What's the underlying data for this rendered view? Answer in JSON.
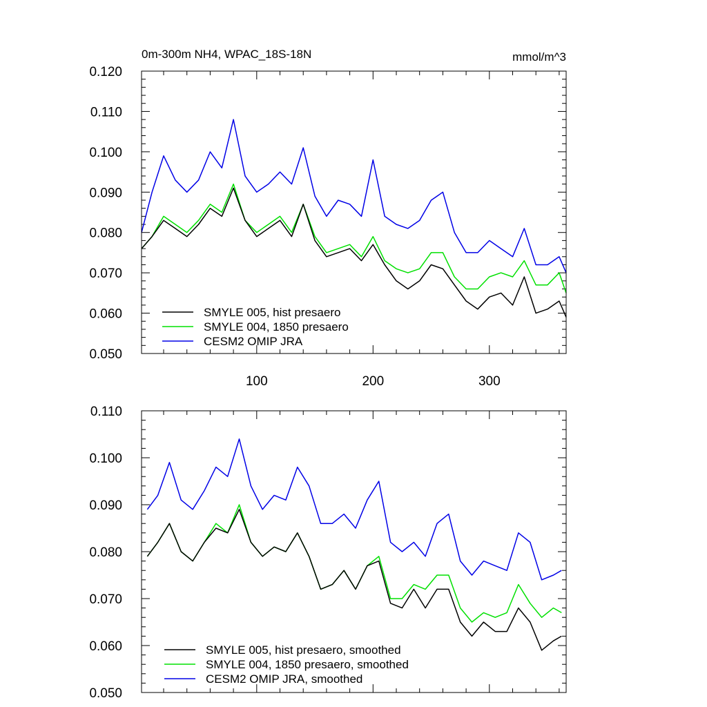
{
  "chart_data": [
    {
      "type": "line",
      "title": "0m-300m NH4, WPAC_18S-18N",
      "units": "mmol/m^3",
      "xlim": [
        1,
        366
      ],
      "ylim": [
        0.05,
        0.12
      ],
      "yticks": [
        "0.050",
        "0.060",
        "0.070",
        "0.080",
        "0.090",
        "0.100",
        "0.110",
        "0.120"
      ],
      "xticks": [
        "100",
        "200",
        "300"
      ],
      "legend_position": "bottom-left",
      "series": [
        {
          "name": "SMYLE 005, hist presaero",
          "color": "#000000",
          "x": [
            1,
            10,
            20,
            30,
            40,
            50,
            60,
            70,
            80,
            90,
            100,
            110,
            120,
            130,
            140,
            150,
            160,
            170,
            180,
            190,
            200,
            210,
            220,
            230,
            240,
            250,
            260,
            270,
            280,
            290,
            300,
            310,
            320,
            330,
            340,
            350,
            360,
            366
          ],
          "y": [
            0.076,
            0.079,
            0.083,
            0.081,
            0.079,
            0.082,
            0.086,
            0.084,
            0.091,
            0.083,
            0.079,
            0.081,
            0.083,
            0.079,
            0.087,
            0.078,
            0.074,
            0.075,
            0.076,
            0.073,
            0.077,
            0.072,
            0.068,
            0.066,
            0.068,
            0.072,
            0.071,
            0.067,
            0.063,
            0.061,
            0.064,
            0.065,
            0.062,
            0.069,
            0.06,
            0.061,
            0.063,
            0.059
          ]
        },
        {
          "name": "SMYLE 004, 1850 presaero",
          "color": "#00e000",
          "x": [
            1,
            10,
            20,
            30,
            40,
            50,
            60,
            70,
            80,
            90,
            100,
            110,
            120,
            130,
            140,
            150,
            160,
            170,
            180,
            190,
            200,
            210,
            220,
            230,
            240,
            250,
            260,
            270,
            280,
            290,
            300,
            310,
            320,
            330,
            340,
            350,
            360,
            366
          ],
          "y": [
            0.076,
            0.079,
            0.084,
            0.082,
            0.08,
            0.083,
            0.087,
            0.085,
            0.092,
            0.083,
            0.08,
            0.082,
            0.084,
            0.08,
            0.087,
            0.079,
            0.075,
            0.076,
            0.077,
            0.074,
            0.079,
            0.073,
            0.071,
            0.07,
            0.071,
            0.075,
            0.075,
            0.069,
            0.066,
            0.066,
            0.069,
            0.07,
            0.069,
            0.073,
            0.067,
            0.067,
            0.07,
            0.065
          ]
        },
        {
          "name": "CESM2 OMIP JRA",
          "color": "#0000e6",
          "x": [
            1,
            10,
            20,
            30,
            40,
            50,
            60,
            70,
            80,
            90,
            100,
            110,
            120,
            130,
            140,
            150,
            160,
            170,
            180,
            190,
            200,
            210,
            220,
            230,
            240,
            250,
            260,
            270,
            280,
            290,
            300,
            310,
            320,
            330,
            340,
            350,
            360,
            366
          ],
          "y": [
            0.08,
            0.09,
            0.099,
            0.093,
            0.09,
            0.093,
            0.1,
            0.096,
            0.108,
            0.094,
            0.09,
            0.092,
            0.095,
            0.092,
            0.101,
            0.089,
            0.084,
            0.088,
            0.087,
            0.084,
            0.098,
            0.084,
            0.082,
            0.081,
            0.083,
            0.088,
            0.09,
            0.08,
            0.075,
            0.075,
            0.078,
            0.076,
            0.074,
            0.081,
            0.072,
            0.072,
            0.074,
            0.07
          ]
        }
      ]
    },
    {
      "type": "line",
      "title": "",
      "units": "",
      "xlim": [
        1,
        366
      ],
      "ylim": [
        0.05,
        0.11
      ],
      "yticks": [
        "0.050",
        "0.060",
        "0.070",
        "0.080",
        "0.090",
        "0.100",
        "0.110"
      ],
      "xticks": [],
      "legend_position": "bottom-left",
      "series": [
        {
          "name": "SMYLE 005, hist presaero, smoothed",
          "color": "#000000",
          "x": [
            6,
            15,
            25,
            35,
            45,
            55,
            65,
            75,
            85,
            95,
            105,
            115,
            125,
            135,
            145,
            155,
            165,
            175,
            185,
            195,
            205,
            215,
            225,
            235,
            245,
            255,
            265,
            275,
            285,
            295,
            305,
            315,
            325,
            335,
            345,
            355,
            362
          ],
          "y": [
            0.079,
            0.082,
            0.086,
            0.08,
            0.078,
            0.082,
            0.085,
            0.084,
            0.089,
            0.082,
            0.079,
            0.081,
            0.08,
            0.084,
            0.079,
            0.072,
            0.073,
            0.076,
            0.072,
            0.077,
            0.078,
            0.069,
            0.068,
            0.072,
            0.068,
            0.072,
            0.072,
            0.065,
            0.062,
            0.065,
            0.063,
            0.063,
            0.068,
            0.065,
            0.059,
            0.061,
            0.062
          ]
        },
        {
          "name": "SMYLE 004, 1850 presaero, smoothed",
          "color": "#00e000",
          "x": [
            6,
            15,
            25,
            35,
            45,
            55,
            65,
            75,
            85,
            95,
            105,
            115,
            125,
            135,
            145,
            155,
            165,
            175,
            185,
            195,
            205,
            215,
            225,
            235,
            245,
            255,
            265,
            275,
            285,
            295,
            305,
            315,
            325,
            335,
            345,
            355,
            362
          ],
          "y": [
            0.079,
            0.082,
            0.086,
            0.08,
            0.078,
            0.082,
            0.086,
            0.084,
            0.09,
            0.082,
            0.079,
            0.081,
            0.08,
            0.084,
            0.079,
            0.072,
            0.073,
            0.076,
            0.072,
            0.077,
            0.079,
            0.07,
            0.07,
            0.073,
            0.072,
            0.075,
            0.075,
            0.068,
            0.065,
            0.067,
            0.066,
            0.067,
            0.073,
            0.069,
            0.066,
            0.068,
            0.067
          ]
        },
        {
          "name": "CESM2 OMIP JRA, smoothed",
          "color": "#0000e6",
          "x": [
            6,
            15,
            25,
            35,
            45,
            55,
            65,
            75,
            85,
            95,
            105,
            115,
            125,
            135,
            145,
            155,
            165,
            175,
            185,
            195,
            205,
            215,
            225,
            235,
            245,
            255,
            265,
            275,
            285,
            295,
            305,
            315,
            325,
            335,
            345,
            355,
            362
          ],
          "y": [
            0.089,
            0.092,
            0.099,
            0.091,
            0.089,
            0.093,
            0.098,
            0.096,
            0.104,
            0.094,
            0.089,
            0.092,
            0.091,
            0.098,
            0.094,
            0.086,
            0.086,
            0.088,
            0.085,
            0.091,
            0.095,
            0.082,
            0.08,
            0.082,
            0.079,
            0.086,
            0.088,
            0.078,
            0.075,
            0.078,
            0.077,
            0.076,
            0.084,
            0.082,
            0.074,
            0.075,
            0.076
          ]
        }
      ]
    }
  ]
}
